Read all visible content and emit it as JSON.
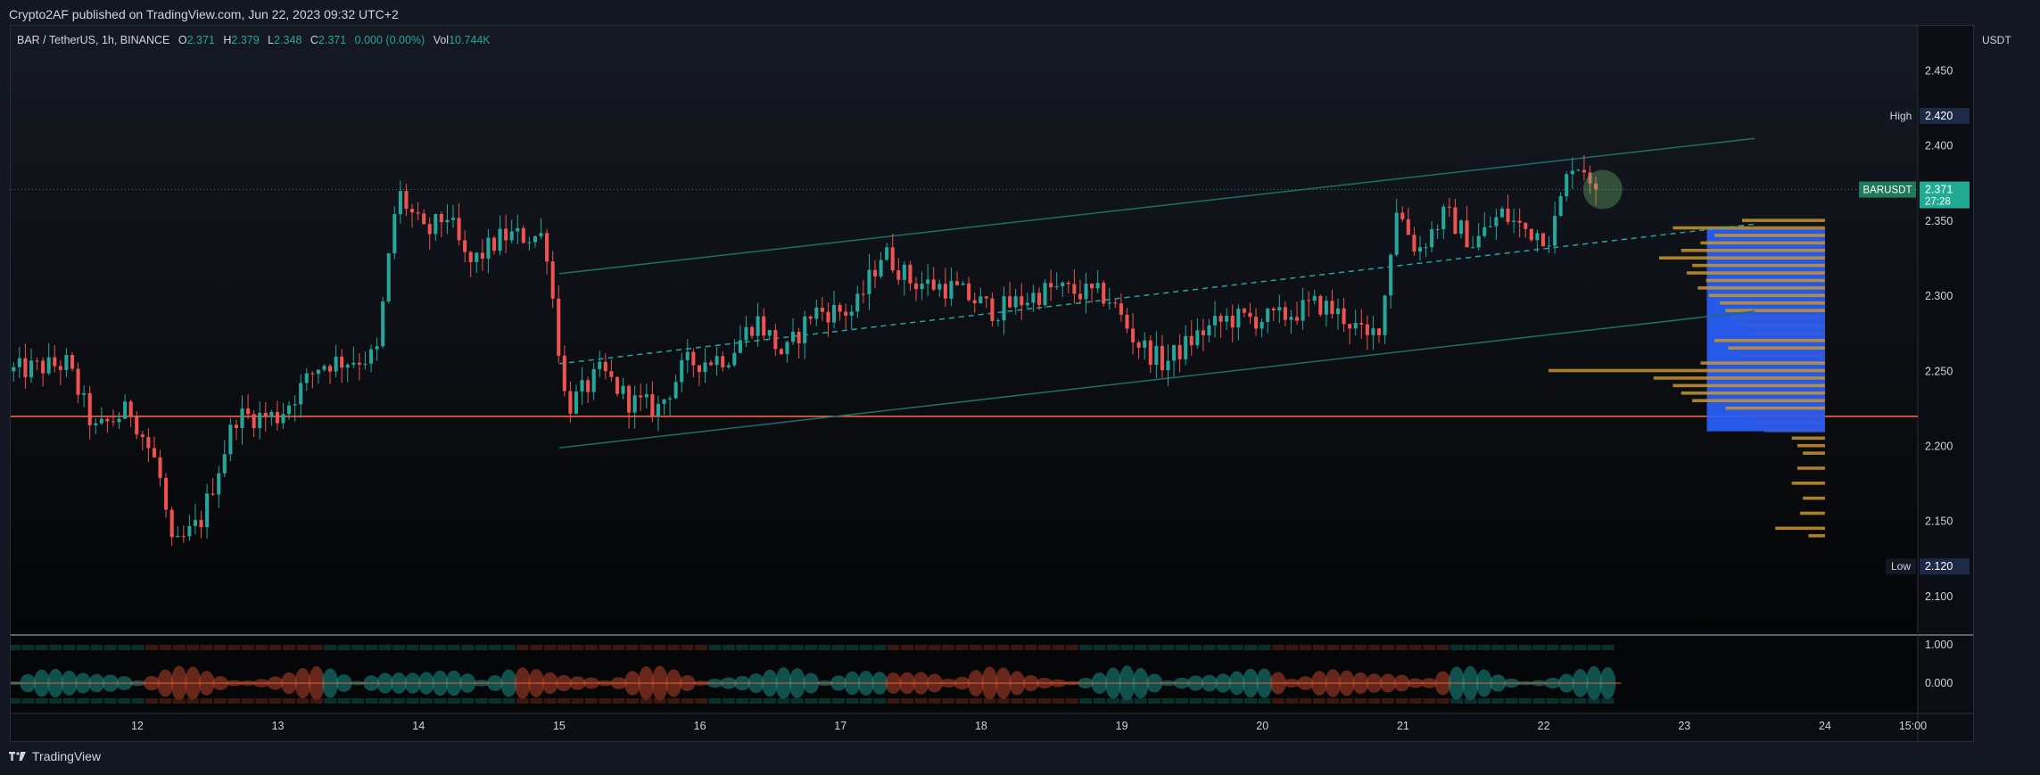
{
  "header": {
    "published": "Crypto2AF published on TradingView.com, Jun 22, 2023 09:32 UTC+2"
  },
  "legend": {
    "symbol": "BAR / TetherUS, 1h, BINANCE",
    "o_label": "O",
    "o": "2.371",
    "h_label": "H",
    "h": "2.379",
    "l_label": "L",
    "l": "2.348",
    "c_label": "C",
    "c": "2.371",
    "change": "0.000 (0.00%)",
    "vol_label": "Vol",
    "vol": "10.744K"
  },
  "axis": {
    "currency": "USDT"
  },
  "markers": {
    "high_label": "High",
    "high_value": "2.420",
    "low_label": "Low",
    "low_value": "2.120",
    "symbol_tag": "BARUSDT",
    "price_tag": "2.371",
    "countdown": "27:28"
  },
  "footer": {
    "brand": "TradingView"
  },
  "colors": {
    "up": "#26a69a",
    "down": "#ef5350",
    "channel": "#1f6f66",
    "support": "#f0623a",
    "vprofile": "#c9952b",
    "value_area": "#2962ff"
  },
  "chart_data": {
    "type": "candlestick",
    "symbol": "BAR / TetherUS",
    "interval": "1h",
    "exchange": "BINANCE",
    "ylim": [
      2.075,
      2.48
    ],
    "y_ticks": [
      "2.450",
      "2.400",
      "2.350",
      "2.300",
      "2.250",
      "2.200",
      "2.150",
      "2.100"
    ],
    "x_ticks": [
      "12",
      "13",
      "14",
      "15",
      "16",
      "17",
      "18",
      "19",
      "20",
      "21",
      "22",
      "23",
      "24",
      "15:00"
    ],
    "x_tick_days": [
      12,
      13,
      14,
      15,
      16,
      17,
      18,
      19,
      20,
      21,
      22,
      23,
      24,
      24.625
    ],
    "day_range": [
      11.1,
      24.66
    ],
    "last_price": 2.371,
    "high": 2.42,
    "low": 2.12,
    "support_level": 2.22,
    "channel": {
      "upper": [
        [
          15.0,
          2.315
        ],
        [
          23.5,
          2.405
        ]
      ],
      "middle": [
        [
          15.0,
          2.255
        ],
        [
          23.5,
          2.348
        ]
      ],
      "lower": [
        [
          15.0,
          2.199
        ],
        [
          23.5,
          2.29
        ]
      ]
    },
    "anchors": [
      [
        11.1,
        2.25
      ],
      [
        11.5,
        2.255
      ],
      [
        11.7,
        2.21
      ],
      [
        11.95,
        2.225
      ],
      [
        12.15,
        2.185
      ],
      [
        12.25,
        2.13
      ],
      [
        12.45,
        2.15
      ],
      [
        12.7,
        2.22
      ],
      [
        13.0,
        2.22
      ],
      [
        13.3,
        2.255
      ],
      [
        13.7,
        2.26
      ],
      [
        13.85,
        2.37
      ],
      [
        14.05,
        2.34
      ],
      [
        14.2,
        2.355
      ],
      [
        14.35,
        2.32
      ],
      [
        14.6,
        2.34
      ],
      [
        14.9,
        2.34
      ],
      [
        15.05,
        2.225
      ],
      [
        15.3,
        2.25
      ],
      [
        15.5,
        2.23
      ],
      [
        15.7,
        2.225
      ],
      [
        15.9,
        2.255
      ],
      [
        16.2,
        2.26
      ],
      [
        16.4,
        2.285
      ],
      [
        16.6,
        2.26
      ],
      [
        16.8,
        2.29
      ],
      [
        17.1,
        2.29
      ],
      [
        17.3,
        2.33
      ],
      [
        17.5,
        2.31
      ],
      [
        17.8,
        2.305
      ],
      [
        18.1,
        2.29
      ],
      [
        18.5,
        2.305
      ],
      [
        18.9,
        2.3
      ],
      [
        19.1,
        2.27
      ],
      [
        19.3,
        2.255
      ],
      [
        19.55,
        2.275
      ],
      [
        19.75,
        2.285
      ],
      [
        20.1,
        2.285
      ],
      [
        20.4,
        2.295
      ],
      [
        20.6,
        2.285
      ],
      [
        20.75,
        2.27
      ],
      [
        20.85,
        2.285
      ],
      [
        20.95,
        2.36
      ],
      [
        21.1,
        2.33
      ],
      [
        21.3,
        2.355
      ],
      [
        21.5,
        2.335
      ],
      [
        21.7,
        2.355
      ],
      [
        21.85,
        2.345
      ],
      [
        22.05,
        2.34
      ],
      [
        22.2,
        2.39
      ],
      [
        22.3,
        2.385
      ],
      [
        22.38,
        2.371
      ]
    ],
    "volume_profile": [
      [
        2.35,
        0.3
      ],
      [
        2.345,
        0.55
      ],
      [
        2.34,
        0.4
      ],
      [
        2.335,
        0.45
      ],
      [
        2.33,
        0.52
      ],
      [
        2.325,
        0.6
      ],
      [
        2.32,
        0.48
      ],
      [
        2.315,
        0.5
      ],
      [
        2.31,
        0.43
      ],
      [
        2.305,
        0.46
      ],
      [
        2.3,
        0.42
      ],
      [
        2.295,
        0.38
      ],
      [
        2.29,
        0.36
      ],
      [
        2.285,
        0.34
      ],
      [
        2.28,
        0.3
      ],
      [
        2.275,
        0.27
      ],
      [
        2.27,
        0.4
      ],
      [
        2.265,
        0.35
      ],
      [
        2.26,
        0.3
      ],
      [
        2.255,
        0.45
      ],
      [
        2.25,
        1.0
      ],
      [
        2.245,
        0.62
      ],
      [
        2.24,
        0.55
      ],
      [
        2.235,
        0.52
      ],
      [
        2.23,
        0.48
      ],
      [
        2.225,
        0.36
      ],
      [
        2.22,
        0.3
      ],
      [
        2.215,
        0.25
      ],
      [
        2.21,
        0.22
      ],
      [
        2.205,
        0.12
      ],
      [
        2.2,
        0.1
      ],
      [
        2.195,
        0.08
      ],
      [
        2.185,
        0.1
      ],
      [
        2.175,
        0.12
      ],
      [
        2.165,
        0.08
      ],
      [
        2.155,
        0.09
      ],
      [
        2.145,
        0.18
      ],
      [
        2.14,
        0.06
      ]
    ],
    "value_area": [
      2.21,
      2.345
    ],
    "oscillator": {
      "ylim": [
        -1,
        1
      ],
      "ticks": [
        "1.000",
        "0.000"
      ]
    }
  }
}
